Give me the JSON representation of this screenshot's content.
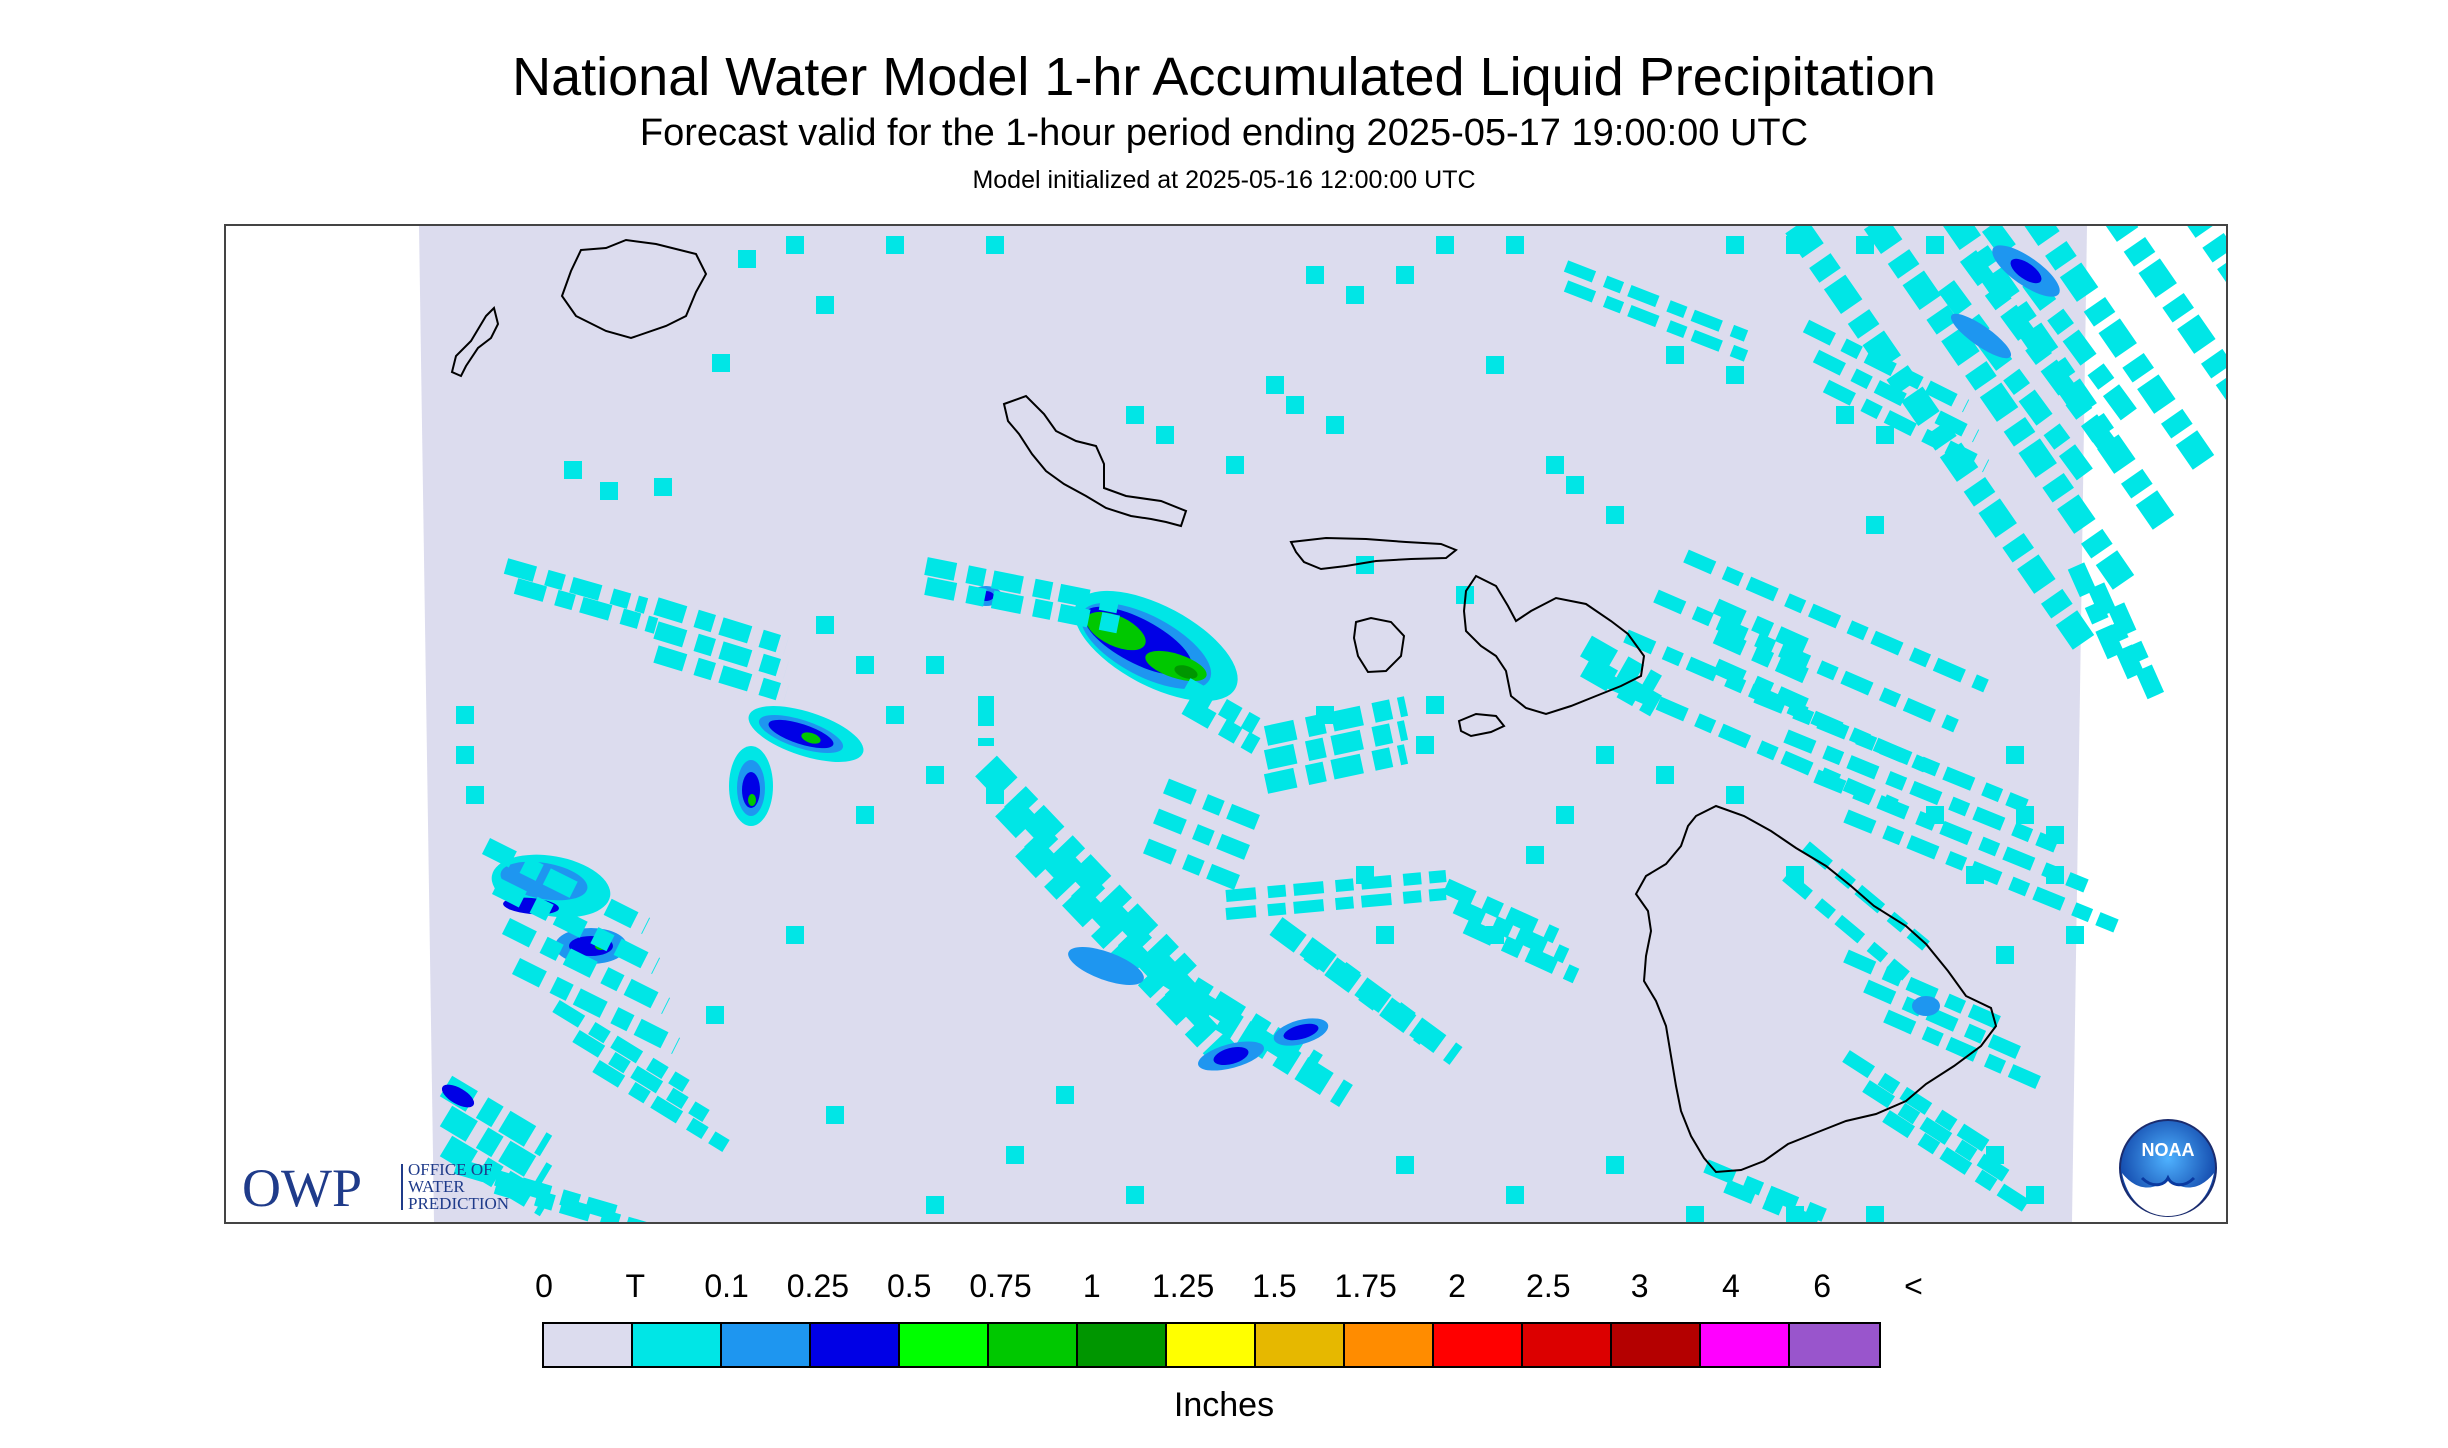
{
  "title": "National Water Model 1-hr Accumulated Liquid Precipitation",
  "subtitle": "Forecast valid for the 1-hour period ending 2025-05-17 19:00:00 UTC",
  "init_line": "Model initialized at 2025-05-16 12:00:00 UTC",
  "legend": {
    "labels": [
      "0",
      "T",
      "0.1",
      "0.25",
      "0.5",
      "0.75",
      "1",
      "1.25",
      "1.5",
      "1.75",
      "2",
      "2.5",
      "3",
      "4",
      "6",
      "<"
    ],
    "colors": [
      "#dcdcee",
      "#00e6e6",
      "#1e96f0",
      "#0000e6",
      "#00ff00",
      "#00c800",
      "#009600",
      "#ffff00",
      "#e6b800",
      "#ff8c00",
      "#ff0000",
      "#dc0000",
      "#b40000",
      "#ff00ff",
      "#9955cc"
    ],
    "units": "Inches"
  },
  "map": {
    "background_color": "#dcdcee",
    "colors": {
      "trace": "#00e6e6",
      "light": "#1e96f0",
      "moderate": "#0000e6",
      "heavy": "#00c800",
      "very_heavy": "#009600"
    }
  },
  "logos": {
    "owp_mark": "OWP",
    "owp_text": [
      "OFFICE OF",
      "WATER",
      "PREDICTION"
    ],
    "noaa_text": "NOAA"
  }
}
